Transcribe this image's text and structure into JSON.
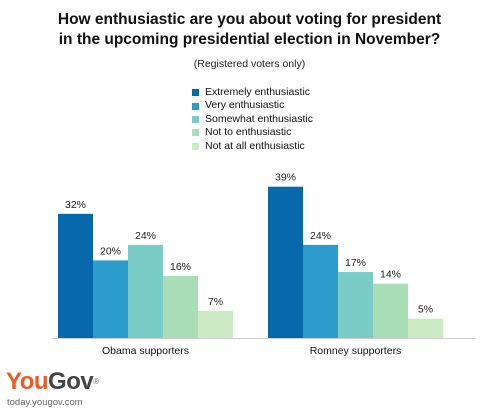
{
  "chart_data": {
    "type": "bar",
    "title_lines": [
      "How enthusiastic are you about voting for president",
      "in the upcoming presidential election in November?"
    ],
    "subtitle": "(Registered voters only)",
    "categories": [
      "Obama supporters",
      "Romney supporters"
    ],
    "series": [
      {
        "name": "Extremely enthusiastic",
        "color": "#0868ac",
        "values": [
          32,
          39
        ]
      },
      {
        "name": "Very enthusiastic",
        "color": "#2b9ccb",
        "values": [
          20,
          24
        ]
      },
      {
        "name": "Somewhat enthusiastic",
        "color": "#7acdc6",
        "values": [
          24,
          17
        ]
      },
      {
        "name": "Not to enthusiastic",
        "color": "#a8ddb5",
        "values": [
          16,
          14
        ]
      },
      {
        "name": "Not at all enthusiastic",
        "color": "#ccebc5",
        "values": [
          7,
          5
        ]
      }
    ],
    "value_suffix": "%",
    "ylim": [
      0,
      40
    ],
    "grid": false,
    "legend_position": "top-center"
  },
  "branding": {
    "logo_you": "You",
    "logo_gov": "Gov",
    "logo_reg": "®",
    "site": "today.yougov.com"
  }
}
